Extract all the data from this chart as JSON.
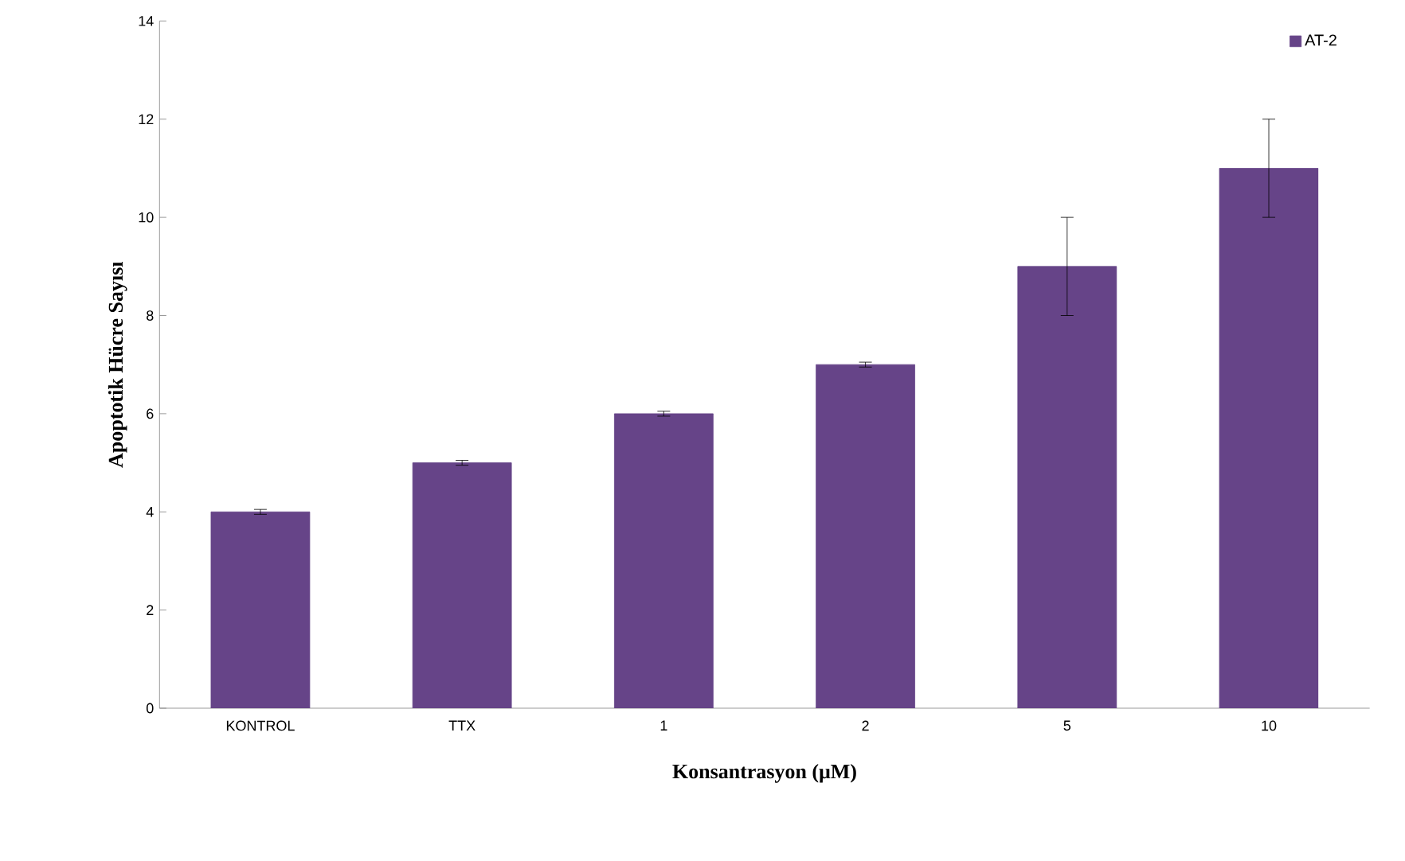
{
  "chart_data": {
    "type": "bar",
    "xlabel": "Konsantrasyon (μM)",
    "ylabel": "Apoptotik Hücre  Sayısı",
    "categories": [
      "KONTROL",
      "TTX",
      "1",
      "2",
      "5",
      "10"
    ],
    "series": [
      {
        "name": "AT-2",
        "color": "#664488",
        "values": [
          4,
          5,
          6,
          7,
          9,
          11
        ],
        "errors": [
          0.05,
          0.05,
          0.05,
          0.05,
          1,
          1
        ]
      }
    ],
    "ylim": [
      0,
      14
    ],
    "yticks": [
      0,
      2,
      4,
      6,
      8,
      10,
      12,
      14
    ],
    "legend": "top right",
    "grid": false
  }
}
